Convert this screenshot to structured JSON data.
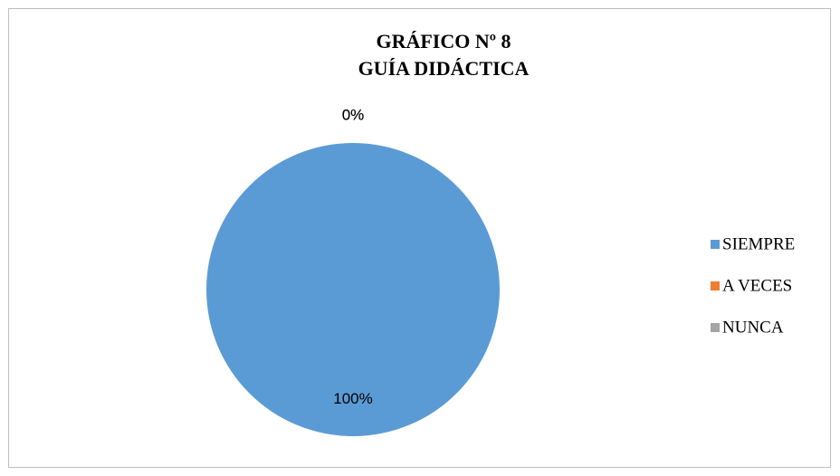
{
  "chart_data": {
    "type": "pie",
    "title": [
      "GRÁFICO Nº 8",
      "GUÍA DIDÁCTICA"
    ],
    "categories": [
      "SIEMPRE",
      "A VECES",
      "NUNCA"
    ],
    "values": [
      100,
      0,
      0
    ],
    "value_labels": [
      "100%",
      "0%",
      "0%"
    ],
    "colors": [
      "#5b9bd5",
      "#ed7d31",
      "#a5a5a5"
    ],
    "legend": "right"
  }
}
